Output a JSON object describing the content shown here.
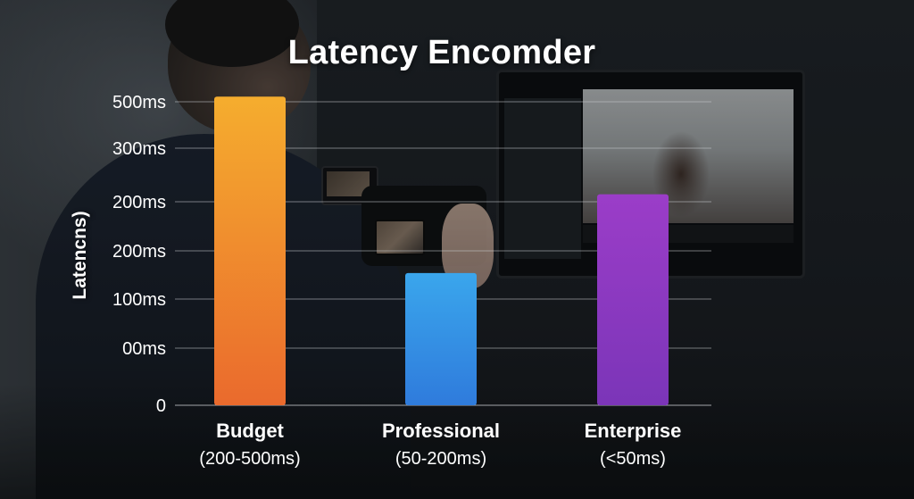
{
  "chart_data": {
    "type": "bar",
    "title": "Latency Encomder",
    "ylabel": "Latencns)",
    "xlabel": "",
    "categories": [
      "Budget",
      "Professional",
      "Enterprise"
    ],
    "category_subtitles": [
      "(200-500ms)",
      "(50-200ms)",
      "(<50ms)"
    ],
    "y_tick_labels": [
      "0",
      "00ms",
      "100ms",
      "200ms",
      "200ms",
      "300ms",
      "500ms"
    ],
    "tick_levels": [
      0,
      1,
      2,
      3,
      4,
      5,
      6
    ],
    "values_in_tick_levels": [
      6.11,
      2.54,
      4.14
    ],
    "ylim": [
      0,
      6
    ],
    "grid": true,
    "colors": {
      "bars_top": [
        "#f5ad2e",
        "#3aa6ec",
        "#9b3dc8"
      ],
      "bars_bottom": [
        "#ea6a2d",
        "#2f7bdc",
        "#7b35b8"
      ],
      "grid": "#c8ccd0",
      "text": "#ffffff"
    }
  }
}
